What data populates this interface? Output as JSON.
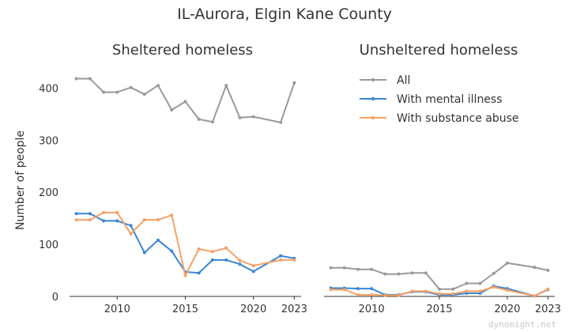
{
  "chart_data": {
    "type": "line",
    "title": "IL-Aurora, Elgin Kane County",
    "ylabel": "Number of people",
    "ylim": [
      0,
      440
    ],
    "yticks": [
      0,
      100,
      200,
      300,
      400
    ],
    "xlim": [
      2006.5,
      2023.5
    ],
    "xticks": [
      2010,
      2015,
      2020,
      2023
    ],
    "grid": false,
    "legend_position": "top-right",
    "colors": {
      "All": "#999999",
      "With mental illness": "#3a85d4",
      "With substance abuse": "#f4a165"
    },
    "panels": [
      {
        "title": "Sheltered homeless",
        "series": [
          {
            "name": "All",
            "color": "#999999",
            "x": [
              2007,
              2008,
              2009,
              2010,
              2011,
              2012,
              2013,
              2014,
              2015,
              2016,
              2017,
              2018,
              2019,
              2020,
              2022,
              2023
            ],
            "y": [
              418,
              418,
              392,
              392,
              401,
              388,
              405,
              358,
              374,
              340,
              335,
              405,
              343,
              345,
              334,
              410
            ]
          },
          {
            "name": "With mental illness",
            "color": "#3a85d4",
            "x": [
              2007,
              2008,
              2009,
              2010,
              2011,
              2012,
              2013,
              2014,
              2015,
              2016,
              2017,
              2018,
              2019,
              2020,
              2022,
              2023
            ],
            "y": [
              159,
              159,
              145,
              145,
              136,
              84,
              108,
              87,
              47,
              45,
              70,
              70,
              62,
              48,
              78,
              73
            ]
          },
          {
            "name": "With substance abuse",
            "color": "#f4a165",
            "x": [
              2007,
              2008,
              2009,
              2010,
              2011,
              2012,
              2013,
              2014,
              2015,
              2016,
              2017,
              2018,
              2019,
              2020,
              2022,
              2023
            ],
            "y": [
              147,
              147,
              161,
              161,
              120,
              147,
              147,
              156,
              40,
              91,
              86,
              93,
              69,
              59,
              70,
              70
            ]
          }
        ]
      },
      {
        "title": "Unsheltered homeless",
        "series": [
          {
            "name": "All",
            "color": "#999999",
            "x": [
              2007,
              2008,
              2009,
              2010,
              2011,
              2012,
              2013,
              2014,
              2015,
              2016,
              2017,
              2018,
              2019,
              2020,
              2022,
              2023
            ],
            "y": [
              55,
              55,
              52,
              52,
              43,
              43,
              45,
              45,
              14,
              14,
              25,
              25,
              44,
              64,
              56,
              50
            ]
          },
          {
            "name": "With mental illness",
            "color": "#3a85d4",
            "x": [
              2007,
              2008,
              2009,
              2010,
              2011,
              2012,
              2013,
              2014,
              2015,
              2016,
              2017,
              2018,
              2019,
              2020,
              2022,
              2023
            ],
            "y": [
              16,
              16,
              15,
              15,
              3,
              3,
              9,
              9,
              3,
              3,
              6,
              6,
              20,
              15,
              1,
              13
            ]
          },
          {
            "name": "With substance abuse",
            "color": "#f4a165",
            "x": [
              2007,
              2008,
              2009,
              2010,
              2011,
              2012,
              2013,
              2014,
              2015,
              2016,
              2017,
              2018,
              2019,
              2020,
              2022,
              2023
            ],
            "y": [
              13,
              13,
              3,
              3,
              2,
              2,
              10,
              10,
              5,
              5,
              10,
              10,
              18,
              12,
              1,
              14
            ]
          }
        ]
      }
    ]
  },
  "watermark": "dynomight.net"
}
